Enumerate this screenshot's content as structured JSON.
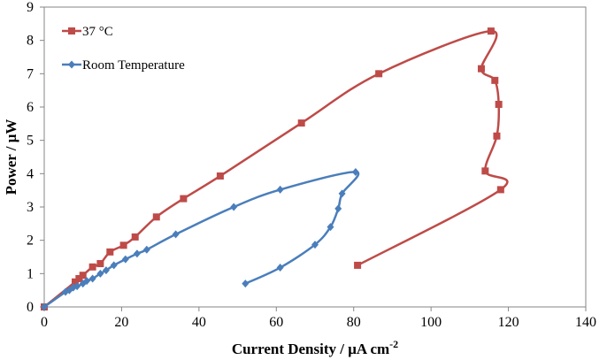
{
  "chart_data": {
    "type": "scatter",
    "title": "",
    "xlabel": "Current Density / μA cm",
    "xlabel_superscript": "-2",
    "ylabel": "Power / μW",
    "xlim": [
      0,
      140
    ],
    "ylim": [
      0,
      9
    ],
    "x_ticks": [
      "0",
      "20",
      "40",
      "60",
      "80",
      "100",
      "120",
      "140"
    ],
    "y_ticks": [
      "0",
      "1",
      "2",
      "3",
      "4",
      "5",
      "6",
      "7",
      "8",
      "9"
    ],
    "grid": false,
    "legend_position": "top-left",
    "series": [
      {
        "name": "37 °C",
        "color": "#be4b48",
        "marker": "square",
        "points": [
          [
            0,
            0
          ],
          [
            8,
            0.75
          ],
          [
            9,
            0.85
          ],
          [
            10,
            0.95
          ],
          [
            12.5,
            1.2
          ],
          [
            14.5,
            1.3
          ],
          [
            17,
            1.65
          ],
          [
            20.5,
            1.85
          ],
          [
            23.5,
            2.1
          ],
          [
            29,
            2.7
          ],
          [
            36,
            3.25
          ],
          [
            45.5,
            3.93
          ],
          [
            66.5,
            5.52
          ],
          [
            86.5,
            7.0
          ],
          [
            115.5,
            8.28
          ],
          [
            113,
            7.15
          ],
          [
            116.5,
            6.8
          ],
          [
            117.5,
            6.08
          ],
          [
            117,
            5.13
          ],
          [
            114,
            4.08
          ],
          [
            118,
            3.52
          ],
          [
            81,
            1.25
          ]
        ]
      },
      {
        "name": "Room Temperature",
        "color": "#4a7ebb",
        "marker": "diamond",
        "points": [
          [
            0,
            0
          ],
          [
            5.5,
            0.45
          ],
          [
            6.5,
            0.5
          ],
          [
            7.5,
            0.58
          ],
          [
            8.5,
            0.62
          ],
          [
            10,
            0.7
          ],
          [
            11,
            0.78
          ],
          [
            12.5,
            0.85
          ],
          [
            14.5,
            1.0
          ],
          [
            16,
            1.1
          ],
          [
            18,
            1.25
          ],
          [
            21,
            1.43
          ],
          [
            24,
            1.6
          ],
          [
            26.5,
            1.72
          ],
          [
            34,
            2.18
          ],
          [
            49,
            3.0
          ],
          [
            61,
            3.52
          ],
          [
            80.5,
            4.05
          ],
          [
            77,
            3.4
          ],
          [
            76,
            2.95
          ],
          [
            74,
            2.4
          ],
          [
            70,
            1.87
          ],
          [
            61,
            1.18
          ],
          [
            52,
            0.7
          ]
        ]
      }
    ]
  }
}
